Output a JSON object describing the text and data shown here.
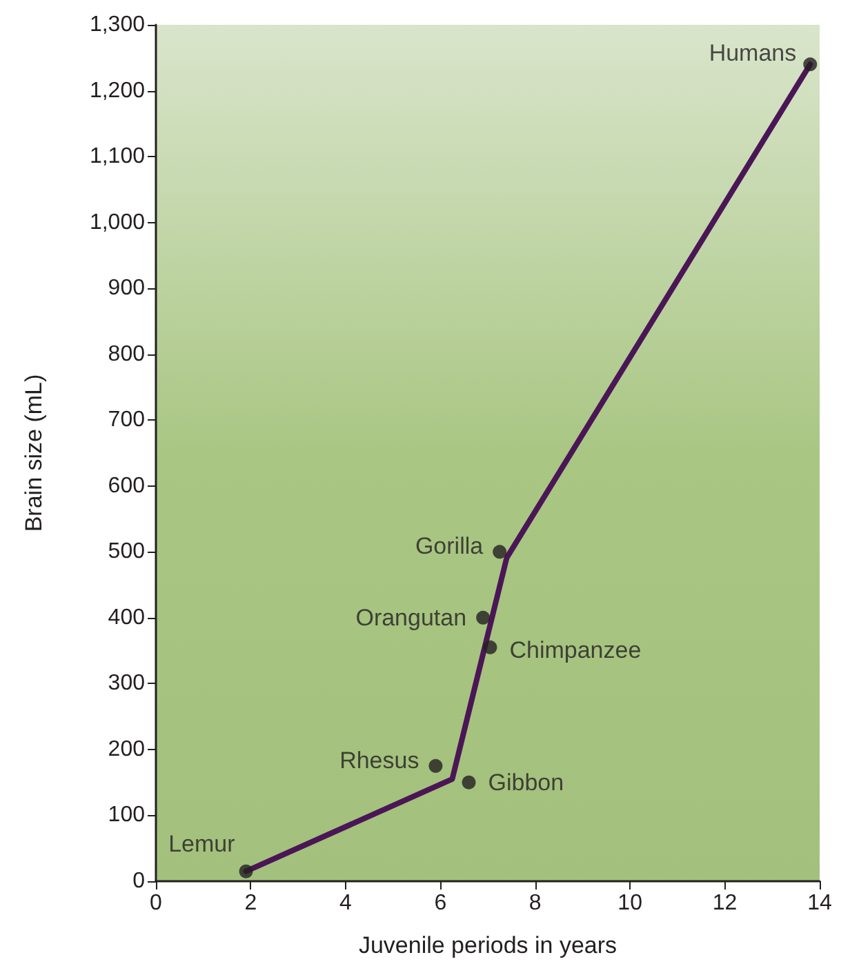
{
  "chart_data": {
    "type": "scatter",
    "xlabel": "Juvenile periods in years",
    "ylabel": "Brain size (mL)",
    "x": [
      1.9,
      5.9,
      6.6,
      6.9,
      7.05,
      7.25,
      13.8
    ],
    "series": [
      {
        "color": "#231f20",
        "marker": "circle",
        "values": [
          15,
          175,
          150,
          400,
          355,
          500,
          1240
        ]
      },
      {
        "type": "line",
        "color": "#4b1656",
        "x": [
          1.9,
          6.25,
          7.4,
          13.8
        ],
        "values": [
          15,
          155,
          491,
          1240
        ]
      }
    ],
    "annotations": [
      {
        "text": "Lemur",
        "x": 1.9,
        "y": 15
      },
      {
        "text": "Rhesus",
        "x": 5.9,
        "y": 175
      },
      {
        "text": "Gibbon",
        "x": 6.6,
        "y": 150
      },
      {
        "text": "Orangutan",
        "x": 6.9,
        "y": 400
      },
      {
        "text": "Chimpanzee",
        "x": 7.05,
        "y": 355
      },
      {
        "text": "Gorilla",
        "x": 7.25,
        "y": 500
      },
      {
        "text": "Humans",
        "x": 13.8,
        "y": 1240
      }
    ],
    "xlim": [
      0,
      14
    ],
    "xticks": [
      0,
      2,
      4,
      6,
      8,
      10,
      12,
      14
    ],
    "ylim": [
      0,
      1300
    ],
    "yticks": [
      0,
      100,
      200,
      300,
      400,
      500,
      600,
      700,
      800,
      900,
      {
        "value": 1000,
        "label": "1,000"
      },
      {
        "value": 1100,
        "label": "1,100"
      },
      {
        "value": 1200,
        "label": "1,200"
      },
      {
        "value": 1300,
        "label": "1,300"
      }
    ],
    "grid": false
  }
}
